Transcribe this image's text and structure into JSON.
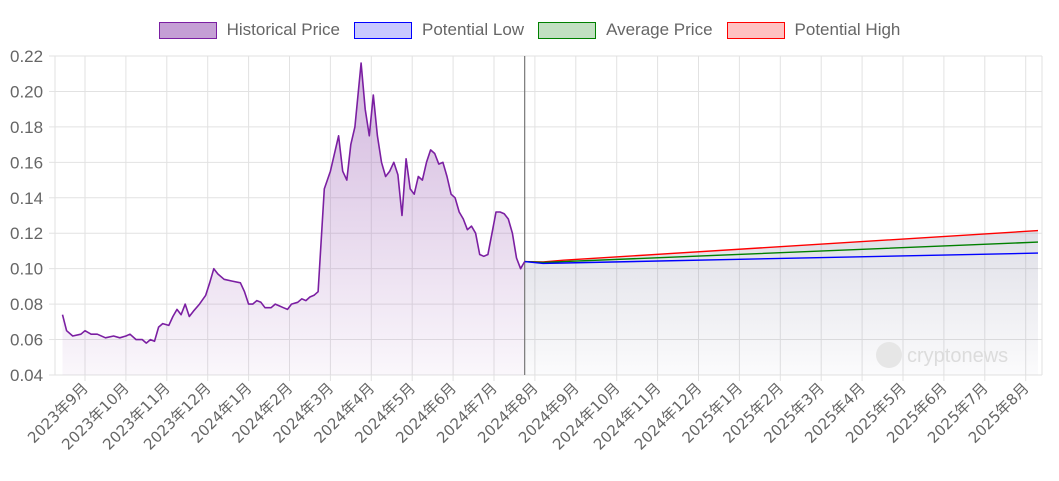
{
  "legend": {
    "items": [
      {
        "label": "Historical Price",
        "color": "#7b1fa2",
        "fill": "#c59fd5"
      },
      {
        "label": "Potential Low",
        "color": "#0000ff",
        "fill": "#c8c8ff"
      },
      {
        "label": "Average Price",
        "color": "#008000",
        "fill": "#c2e0c2"
      },
      {
        "label": "Potential High",
        "color": "#ff0000",
        "fill": "#ffc2c2"
      }
    ]
  },
  "watermark": "cryptonews",
  "chart_data": {
    "type": "line",
    "ylim": [
      0.04,
      0.22
    ],
    "y_ticks": [
      "0.04",
      "0.06",
      "0.08",
      "0.10",
      "0.12",
      "0.14",
      "0.16",
      "0.18",
      "0.20",
      "0.22"
    ],
    "x_labels": [
      "2023年9月",
      "2023年10月",
      "2023年11月",
      "2023年12月",
      "2024年1月",
      "2024年2月",
      "2024年3月",
      "2024年4月",
      "2024年5月",
      "2024年6月",
      "2024年7月",
      "2024年8月",
      "2024年9月",
      "2024年10月",
      "2024年11月",
      "2024年12月",
      "2025年1月",
      "2025年2月",
      "2025年3月",
      "2025年4月",
      "2025年5月",
      "2025年6月",
      "2025年7月",
      "2025年8月"
    ],
    "grid": true,
    "legend_position": "top",
    "series": [
      {
        "name": "Historical Price",
        "color": "#7b1fa2",
        "points": [
          [
            -0.55,
            0.074
          ],
          [
            -0.45,
            0.065
          ],
          [
            -0.3,
            0.062
          ],
          [
            -0.1,
            0.063
          ],
          [
            0.0,
            0.065
          ],
          [
            0.15,
            0.063
          ],
          [
            0.3,
            0.063
          ],
          [
            0.5,
            0.061
          ],
          [
            0.7,
            0.062
          ],
          [
            0.85,
            0.061
          ],
          [
            1.0,
            0.062
          ],
          [
            1.1,
            0.063
          ],
          [
            1.25,
            0.06
          ],
          [
            1.4,
            0.06
          ],
          [
            1.5,
            0.058
          ],
          [
            1.6,
            0.06
          ],
          [
            1.7,
            0.059
          ],
          [
            1.8,
            0.067
          ],
          [
            1.9,
            0.069
          ],
          [
            2.05,
            0.068
          ],
          [
            2.15,
            0.073
          ],
          [
            2.25,
            0.077
          ],
          [
            2.35,
            0.074
          ],
          [
            2.45,
            0.08
          ],
          [
            2.55,
            0.073
          ],
          [
            2.65,
            0.076
          ],
          [
            2.8,
            0.08
          ],
          [
            2.95,
            0.085
          ],
          [
            3.05,
            0.092
          ],
          [
            3.15,
            0.1
          ],
          [
            3.25,
            0.097
          ],
          [
            3.4,
            0.094
          ],
          [
            3.6,
            0.093
          ],
          [
            3.8,
            0.092
          ],
          [
            3.9,
            0.087
          ],
          [
            4.0,
            0.08
          ],
          [
            4.1,
            0.08
          ],
          [
            4.2,
            0.082
          ],
          [
            4.3,
            0.081
          ],
          [
            4.4,
            0.078
          ],
          [
            4.55,
            0.078
          ],
          [
            4.65,
            0.08
          ],
          [
            4.75,
            0.079
          ],
          [
            4.85,
            0.078
          ],
          [
            4.95,
            0.077
          ],
          [
            5.05,
            0.08
          ],
          [
            5.2,
            0.081
          ],
          [
            5.3,
            0.083
          ],
          [
            5.4,
            0.082
          ],
          [
            5.5,
            0.084
          ],
          [
            5.6,
            0.085
          ],
          [
            5.7,
            0.087
          ],
          [
            5.85,
            0.145
          ],
          [
            6.0,
            0.155
          ],
          [
            6.1,
            0.165
          ],
          [
            6.2,
            0.175
          ],
          [
            6.3,
            0.155
          ],
          [
            6.4,
            0.15
          ],
          [
            6.5,
            0.17
          ],
          [
            6.6,
            0.18
          ],
          [
            6.75,
            0.216
          ],
          [
            6.85,
            0.19
          ],
          [
            6.95,
            0.175
          ],
          [
            7.05,
            0.198
          ],
          [
            7.15,
            0.175
          ],
          [
            7.25,
            0.16
          ],
          [
            7.35,
            0.152
          ],
          [
            7.45,
            0.155
          ],
          [
            7.55,
            0.16
          ],
          [
            7.65,
            0.153
          ],
          [
            7.75,
            0.13
          ],
          [
            7.85,
            0.162
          ],
          [
            7.95,
            0.145
          ],
          [
            8.05,
            0.142
          ],
          [
            8.15,
            0.152
          ],
          [
            8.25,
            0.15
          ],
          [
            8.35,
            0.16
          ],
          [
            8.45,
            0.167
          ],
          [
            8.55,
            0.165
          ],
          [
            8.65,
            0.159
          ],
          [
            8.75,
            0.16
          ],
          [
            8.85,
            0.152
          ],
          [
            8.95,
            0.142
          ],
          [
            9.05,
            0.14
          ],
          [
            9.15,
            0.132
          ],
          [
            9.25,
            0.128
          ],
          [
            9.35,
            0.122
          ],
          [
            9.45,
            0.124
          ],
          [
            9.55,
            0.12
          ],
          [
            9.65,
            0.108
          ],
          [
            9.75,
            0.107
          ],
          [
            9.85,
            0.108
          ],
          [
            9.95,
            0.12
          ],
          [
            10.05,
            0.132
          ],
          [
            10.15,
            0.132
          ],
          [
            10.25,
            0.131
          ],
          [
            10.35,
            0.128
          ],
          [
            10.45,
            0.12
          ],
          [
            10.55,
            0.106
          ],
          [
            10.65,
            0.1
          ],
          [
            10.7,
            0.102
          ],
          [
            10.75,
            0.104
          ]
        ]
      },
      {
        "name": "Potential Low",
        "color": "#0000ff",
        "points": [
          [
            10.75,
            0.104
          ],
          [
            11.2,
            0.103
          ],
          [
            11.7,
            0.1032
          ],
          [
            23.3,
            0.1088
          ]
        ]
      },
      {
        "name": "Average Price",
        "color": "#008000",
        "points": [
          [
            10.75,
            0.104
          ],
          [
            11.2,
            0.1035
          ],
          [
            11.7,
            0.104
          ],
          [
            23.3,
            0.115
          ]
        ]
      },
      {
        "name": "Potential High",
        "color": "#ff0000",
        "points": [
          [
            10.75,
            0.104
          ],
          [
            11.2,
            0.1038
          ],
          [
            11.7,
            0.1048
          ],
          [
            23.3,
            0.1215
          ]
        ]
      }
    ]
  }
}
